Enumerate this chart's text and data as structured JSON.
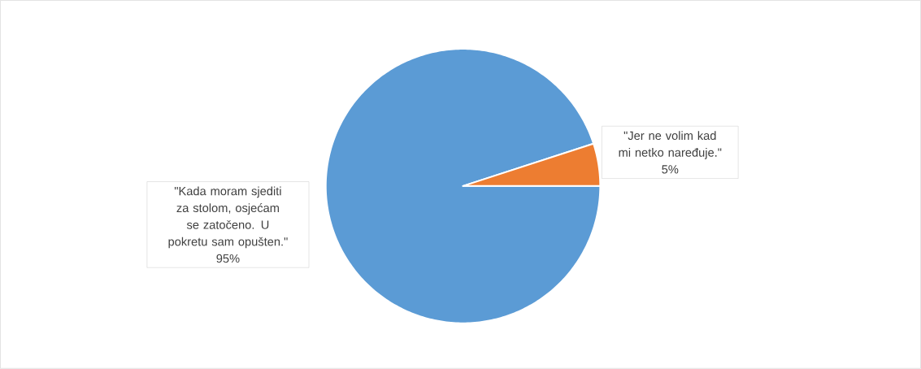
{
  "chart_data": {
    "type": "pie",
    "categories": [
      "\"Kada moram sjediti za stolom, osjećam se zatočeno. U pokretu sam opušten.\"",
      "\"Jer ne volim kad mi netko naređuje.\""
    ],
    "values": [
      95,
      5
    ],
    "colors": [
      "#5b9bd5",
      "#ed7d31"
    ],
    "value_labels": [
      "95%",
      "5%"
    ]
  }
}
